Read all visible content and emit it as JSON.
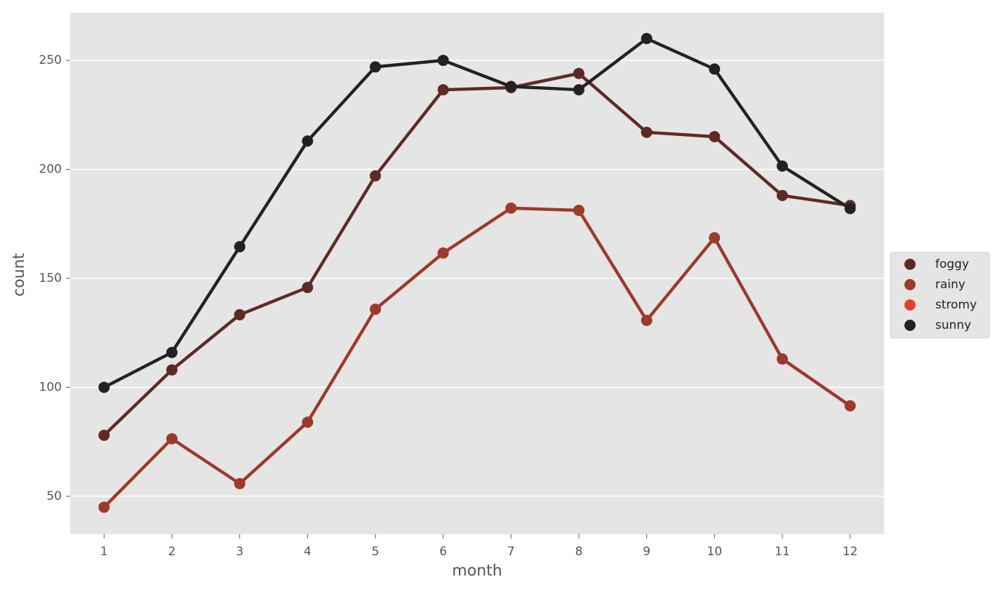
{
  "chart_data": {
    "type": "line",
    "x_label": "month",
    "y_label": "count",
    "categories": [
      "1",
      "2",
      "3",
      "4",
      "5",
      "6",
      "7",
      "8",
      "9",
      "10",
      "11",
      "12"
    ],
    "series": [
      {
        "name": "foggy",
        "color": "#5e2b24",
        "values": [
          78,
          108,
          133.3,
          145.8,
          197,
          236.5,
          237.5,
          244,
          217,
          215,
          188,
          183.4
        ]
      },
      {
        "name": "rainy",
        "color": "#9c3a2b",
        "values": [
          45,
          76.4,
          55.8,
          84,
          135.8,
          161.6,
          182.2,
          181.2,
          130.7,
          168.6,
          113,
          91.5
        ]
      },
      {
        "name": "stromy",
        "color": "#e0412e",
        "values": [
          null,
          null,
          null,
          null,
          null,
          null,
          null,
          null,
          null,
          null,
          null,
          null
        ]
      },
      {
        "name": "sunny",
        "color": "#222222",
        "values": [
          100,
          116,
          164.5,
          213,
          247,
          250,
          238,
          236.5,
          260,
          246,
          201.5,
          182
        ]
      }
    ],
    "ylim": [
      32.6,
      271.9
    ],
    "yticks": [
      50,
      100,
      150,
      200,
      250
    ],
    "grid": true,
    "legend": "right"
  }
}
